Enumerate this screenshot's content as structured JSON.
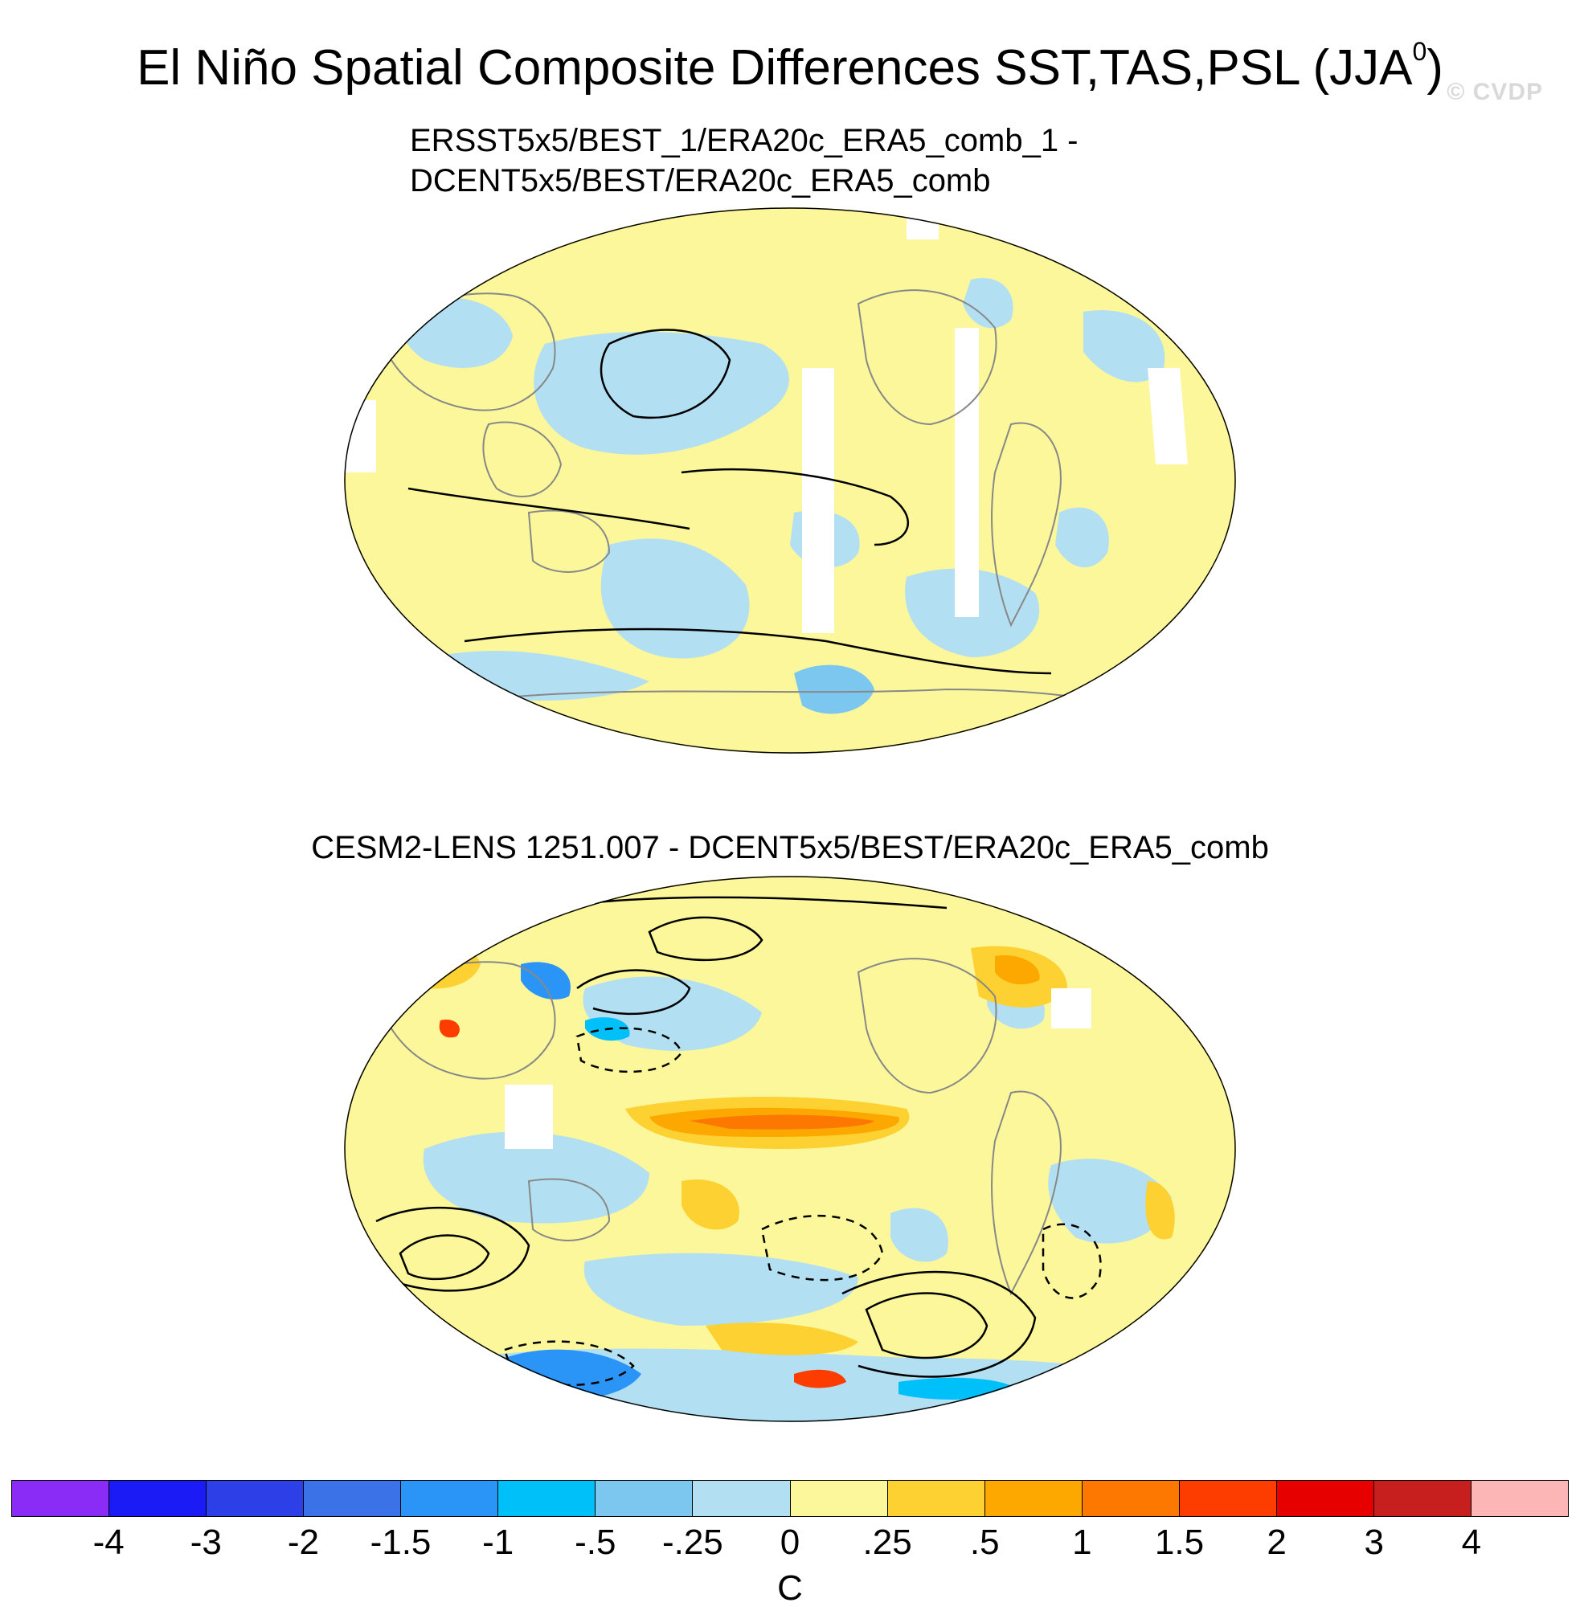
{
  "title": {
    "main": "El Niño Spatial Composite Differences SST,TAS,PSL (JJA",
    "superscript": "0",
    "close": ")"
  },
  "watermark": "© CVDP",
  "panels": [
    {
      "subtitle_line1": "ERSST5x5/BEST_1/ERA20c_ERA5_comb_1 -",
      "subtitle_line2": "DCENT5x5/BEST/ERA20c_ERA5_comb"
    },
    {
      "subtitle_line1": "CESM2-LENS 1251.007 - DCENT5x5/BEST/ERA20c_ERA5_comb"
    }
  ],
  "colorbar": {
    "colors": [
      "#8b2cf6",
      "#1b1bf5",
      "#2d3fe6",
      "#3b72e8",
      "#2b95f7",
      "#00c0fa",
      "#7cc7f0",
      "#b3dff2",
      "#fbf79a",
      "#fdd131",
      "#fda800",
      "#fd7800",
      "#fd3c00",
      "#e60000",
      "#c71e1e",
      "#fdb6b6"
    ],
    "labels": [
      "-4",
      "-3",
      "-2",
      "-1.5",
      "-1",
      "-.5",
      "-.25",
      "0",
      ".25",
      ".5",
      "1",
      "1.5",
      "2",
      "3",
      "4"
    ],
    "units": "C"
  }
}
